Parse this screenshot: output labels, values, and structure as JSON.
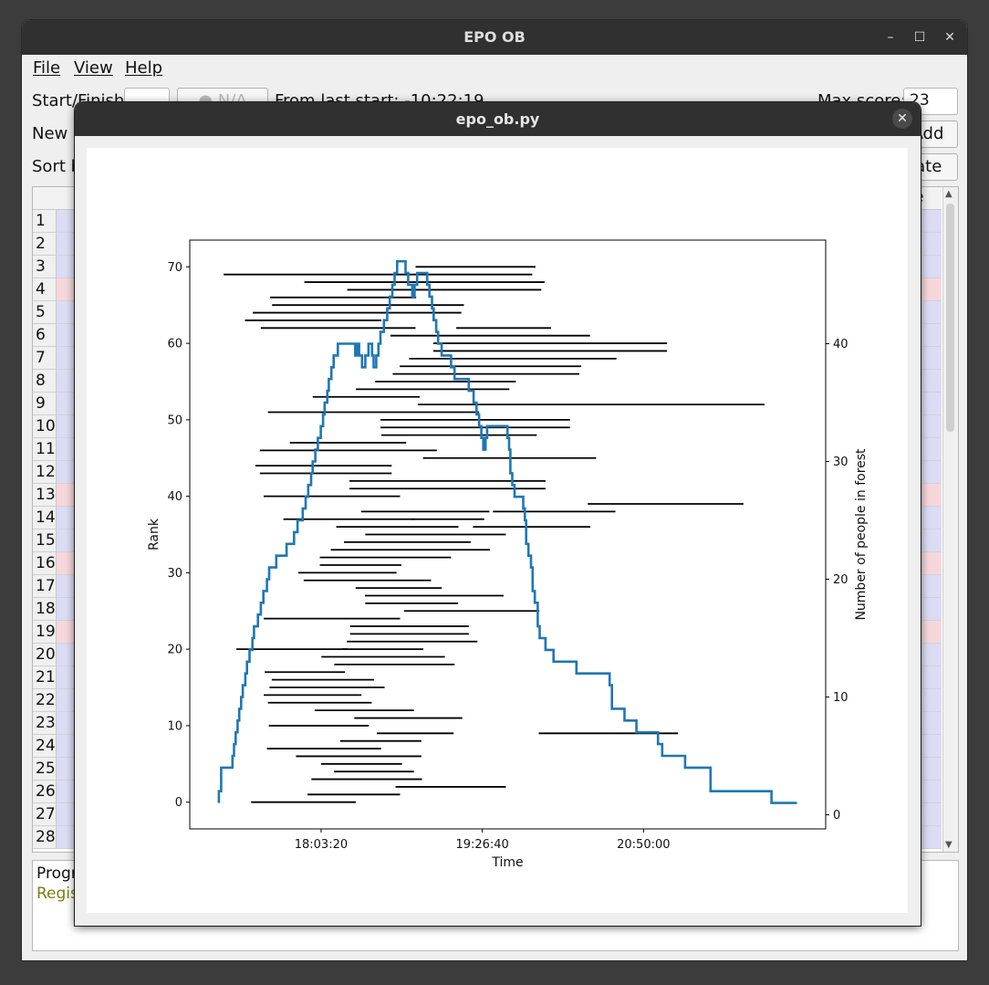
{
  "main_window": {
    "title": "EPO OB",
    "controls": {
      "minimize": "–",
      "maximize": "☐",
      "close": "✕"
    },
    "menu": [
      "File",
      "View",
      "Help"
    ],
    "row1": {
      "start_finish_label": "Start/Finish",
      "na_button": "N/A",
      "from_last_start": "From last start:  -10:22:19",
      "max_score_label": "Max score:",
      "max_score_value": "23"
    },
    "row2": {
      "new_label": "New r",
      "add_button": "Add"
    },
    "row3": {
      "sort_label": "Sort b",
      "update_button": "date"
    },
    "table": {
      "header_fragment": "e",
      "row_numbers": [
        "1",
        "2",
        "3",
        "4",
        "5",
        "6",
        "7",
        "8",
        "9",
        "10",
        "11",
        "12",
        "13",
        "14",
        "15",
        "16",
        "17",
        "18",
        "19",
        "20",
        "21",
        "22",
        "23",
        "24",
        "25",
        "26",
        "27",
        "28"
      ],
      "highlighted_rows": [
        4,
        13,
        16,
        19
      ],
      "colors": {
        "normal": "#dcdcf4",
        "highlighted": "#f6d8dc"
      }
    },
    "log": {
      "line1": "Progr",
      "line2": "Regis",
      "line2_color": "#7d7d10"
    }
  },
  "dialog": {
    "title": "epo_ob.py",
    "close_icon": "✕"
  },
  "chart_data": {
    "type": "line",
    "xlabel": "Time",
    "ylabel_left": "Rank",
    "ylabel_right": "Number of people in forest",
    "x_ticks": [
      "18:03:20",
      "19:26:40",
      "20:50:00"
    ],
    "y_left_ticks": [
      0,
      10,
      20,
      30,
      40,
      50,
      60,
      70
    ],
    "y_right_ticks": [
      0,
      10,
      20,
      30,
      40
    ],
    "y_left_lim": [
      -3.5,
      73.5
    ],
    "y_right_lim": [
      -1.2,
      48.8
    ],
    "x_lim": [
      "16:55:27",
      "22:24:10"
    ],
    "series_color": "#1f77b4",
    "segment_color": "#000000",
    "people_in_forest": [
      [
        "17:10:30",
        1
      ],
      [
        "17:10:30",
        2
      ],
      [
        "17:11:40",
        2
      ],
      [
        "17:11:40",
        4
      ],
      [
        "17:17:30",
        4
      ],
      [
        "17:17:30",
        5
      ],
      [
        "17:18:20",
        5
      ],
      [
        "17:18:20",
        6
      ],
      [
        "17:19:10",
        6
      ],
      [
        "17:19:10",
        7
      ],
      [
        "17:20:10",
        7
      ],
      [
        "17:20:10",
        8
      ],
      [
        "17:21:00",
        8
      ],
      [
        "17:21:00",
        9
      ],
      [
        "17:22:00",
        9
      ],
      [
        "17:22:00",
        10
      ],
      [
        "17:22:50",
        10
      ],
      [
        "17:22:50",
        11
      ],
      [
        "17:24:10",
        11
      ],
      [
        "17:24:10",
        12
      ],
      [
        "17:25:00",
        12
      ],
      [
        "17:25:00",
        13
      ],
      [
        "17:26:20",
        13
      ],
      [
        "17:26:20",
        14
      ],
      [
        "17:27:50",
        14
      ],
      [
        "17:27:50",
        15
      ],
      [
        "17:28:40",
        15
      ],
      [
        "17:28:40",
        16
      ],
      [
        "17:30:40",
        16
      ],
      [
        "17:30:40",
        17
      ],
      [
        "17:32:10",
        17
      ],
      [
        "17:32:10",
        18
      ],
      [
        "17:33:30",
        18
      ],
      [
        "17:33:30",
        19
      ],
      [
        "17:35:20",
        19
      ],
      [
        "17:35:20",
        20
      ],
      [
        "17:36:30",
        20
      ],
      [
        "17:36:30",
        21
      ],
      [
        "17:40:10",
        21
      ],
      [
        "17:40:10",
        22
      ],
      [
        "17:45:30",
        22
      ],
      [
        "17:45:30",
        23
      ],
      [
        "17:49:20",
        23
      ],
      [
        "17:49:20",
        24
      ],
      [
        "17:51:10",
        24
      ],
      [
        "17:51:10",
        25
      ],
      [
        "17:53:50",
        25
      ],
      [
        "17:53:50",
        26
      ],
      [
        "17:55:20",
        26
      ],
      [
        "17:55:20",
        27
      ],
      [
        "17:56:40",
        27
      ],
      [
        "17:56:40",
        28
      ],
      [
        "17:58:10",
        28
      ],
      [
        "17:58:10",
        29
      ],
      [
        "17:59:00",
        29
      ],
      [
        "17:59:00",
        30
      ],
      [
        "18:00:20",
        30
      ],
      [
        "18:00:20",
        31
      ],
      [
        "18:01:40",
        31
      ],
      [
        "18:01:40",
        32
      ],
      [
        "18:03:10",
        32
      ],
      [
        "18:03:10",
        33
      ],
      [
        "18:04:20",
        33
      ],
      [
        "18:04:20",
        34
      ],
      [
        "18:05:10",
        34
      ],
      [
        "18:05:10",
        35
      ],
      [
        "18:06:30",
        35
      ],
      [
        "18:06:30",
        36
      ],
      [
        "18:07:20",
        36
      ],
      [
        "18:07:20",
        37
      ],
      [
        "18:08:40",
        37
      ],
      [
        "18:08:40",
        38
      ],
      [
        "18:09:50",
        38
      ],
      [
        "18:09:50",
        39
      ],
      [
        "18:12:00",
        39
      ],
      [
        "18:12:00",
        40
      ],
      [
        "18:21:00",
        40
      ],
      [
        "18:21:00",
        39
      ],
      [
        "18:22:00",
        39
      ],
      [
        "18:22:00",
        40
      ],
      [
        "18:23:00",
        40
      ],
      [
        "18:23:00",
        39
      ],
      [
        "18:24:30",
        39
      ],
      [
        "18:24:30",
        38
      ],
      [
        "18:26:10",
        38
      ],
      [
        "18:26:10",
        39
      ],
      [
        "18:27:50",
        39
      ],
      [
        "18:27:50",
        40
      ],
      [
        "18:29:40",
        40
      ],
      [
        "18:29:40",
        39
      ],
      [
        "18:30:30",
        39
      ],
      [
        "18:30:30",
        38
      ],
      [
        "18:31:50",
        38
      ],
      [
        "18:31:50",
        39
      ],
      [
        "18:33:00",
        39
      ],
      [
        "18:33:00",
        40
      ],
      [
        "18:34:00",
        40
      ],
      [
        "18:34:00",
        41
      ],
      [
        "18:35:50",
        41
      ],
      [
        "18:35:50",
        42
      ],
      [
        "18:37:30",
        42
      ],
      [
        "18:37:30",
        43
      ],
      [
        "18:38:50",
        43
      ],
      [
        "18:38:50",
        44
      ],
      [
        "18:40:10",
        44
      ],
      [
        "18:40:10",
        45
      ],
      [
        "18:41:20",
        45
      ],
      [
        "18:41:20",
        46
      ],
      [
        "18:42:40",
        46
      ],
      [
        "18:42:40",
        47
      ],
      [
        "18:47:00",
        47
      ],
      [
        "18:47:00",
        46
      ],
      [
        "18:48:20",
        46
      ],
      [
        "18:48:20",
        45
      ],
      [
        "18:50:30",
        45
      ],
      [
        "18:50:30",
        44
      ],
      [
        "18:51:40",
        44
      ],
      [
        "18:51:40",
        45
      ],
      [
        "18:53:00",
        45
      ],
      [
        "18:53:00",
        46
      ],
      [
        "18:58:10",
        46
      ],
      [
        "18:58:10",
        45
      ],
      [
        "18:59:20",
        45
      ],
      [
        "18:59:20",
        44
      ],
      [
        "19:00:40",
        44
      ],
      [
        "19:00:40",
        43
      ],
      [
        "19:01:30",
        43
      ],
      [
        "19:01:30",
        42
      ],
      [
        "19:02:50",
        42
      ],
      [
        "19:02:50",
        41
      ],
      [
        "19:03:50",
        41
      ],
      [
        "19:03:50",
        40
      ],
      [
        "19:05:40",
        40
      ],
      [
        "19:05:40",
        39
      ],
      [
        "19:10:30",
        39
      ],
      [
        "19:10:30",
        38
      ],
      [
        "19:12:20",
        38
      ],
      [
        "19:12:20",
        37
      ],
      [
        "19:19:40",
        37
      ],
      [
        "19:19:40",
        36
      ],
      [
        "19:22:10",
        36
      ],
      [
        "19:22:10",
        35
      ],
      [
        "19:23:40",
        35
      ],
      [
        "19:23:40",
        34
      ],
      [
        "19:25:00",
        34
      ],
      [
        "19:25:00",
        33
      ],
      [
        "19:26:10",
        33
      ],
      [
        "19:26:10",
        32
      ],
      [
        "19:27:10",
        32
      ],
      [
        "19:27:10",
        31
      ],
      [
        "19:28:20",
        31
      ],
      [
        "19:28:20",
        32
      ],
      [
        "19:29:10",
        32
      ],
      [
        "19:29:10",
        33
      ],
      [
        "19:39:40",
        33
      ],
      [
        "19:39:40",
        32
      ],
      [
        "19:40:30",
        32
      ],
      [
        "19:40:30",
        31
      ],
      [
        "19:41:10",
        31
      ],
      [
        "19:41:10",
        29
      ],
      [
        "19:42:10",
        29
      ],
      [
        "19:42:10",
        28
      ],
      [
        "19:43:20",
        28
      ],
      [
        "19:43:20",
        27
      ],
      [
        "19:47:50",
        27
      ],
      [
        "19:47:50",
        26
      ],
      [
        "19:48:40",
        26
      ],
      [
        "19:48:40",
        25
      ],
      [
        "19:49:20",
        25
      ],
      [
        "19:49:20",
        23
      ],
      [
        "19:50:30",
        23
      ],
      [
        "19:50:30",
        22
      ],
      [
        "19:51:50",
        22
      ],
      [
        "19:51:50",
        21
      ],
      [
        "19:52:40",
        21
      ],
      [
        "19:52:40",
        19
      ],
      [
        "19:53:50",
        19
      ],
      [
        "19:53:50",
        18
      ],
      [
        "19:55:20",
        18
      ],
      [
        "19:55:20",
        16
      ],
      [
        "19:56:20",
        16
      ],
      [
        "19:56:20",
        15
      ],
      [
        "19:59:20",
        15
      ],
      [
        "19:59:20",
        14
      ],
      [
        "20:03:30",
        14
      ],
      [
        "20:03:30",
        13
      ],
      [
        "20:15:20",
        13
      ],
      [
        "20:15:20",
        12
      ],
      [
        "20:32:30",
        12
      ],
      [
        "20:32:30",
        11
      ],
      [
        "20:33:40",
        11
      ],
      [
        "20:33:40",
        9
      ],
      [
        "20:40:10",
        9
      ],
      [
        "20:40:10",
        8
      ],
      [
        "20:46:20",
        8
      ],
      [
        "20:46:20",
        7
      ],
      [
        "20:57:30",
        7
      ],
      [
        "20:57:30",
        6
      ],
      [
        "20:59:40",
        6
      ],
      [
        "20:59:40",
        5
      ],
      [
        "21:11:30",
        5
      ],
      [
        "21:11:30",
        4
      ],
      [
        "21:24:40",
        4
      ],
      [
        "21:24:40",
        2
      ],
      [
        "21:56:10",
        2
      ],
      [
        "21:56:10",
        1
      ],
      [
        "22:09:20",
        1
      ]
    ],
    "rank_intervals": [
      [
        0,
        "17:27:10",
        "18:21:20"
      ],
      [
        1,
        "17:56:20",
        "18:44:10"
      ],
      [
        2,
        "18:41:50",
        "19:38:50"
      ],
      [
        3,
        "17:58:20",
        "18:55:30"
      ],
      [
        4,
        "18:10:00",
        "18:51:20"
      ],
      [
        5,
        "18:03:20",
        "18:45:10"
      ],
      [
        6,
        "17:50:20",
        "18:55:10"
      ],
      [
        7,
        "17:35:20",
        "18:34:20"
      ],
      [
        8,
        "18:13:10",
        "18:55:10"
      ],
      [
        9,
        "18:32:10",
        "19:11:50"
      ],
      [
        9,
        "19:55:50",
        "21:07:50"
      ],
      [
        10,
        "17:36:20",
        "18:28:00"
      ],
      [
        11,
        "18:20:30",
        "19:16:20"
      ],
      [
        12,
        "18:00:00",
        "18:51:20"
      ],
      [
        13,
        "17:35:50",
        "18:29:30"
      ],
      [
        14,
        "17:33:40",
        "18:24:10"
      ],
      [
        15,
        "17:36:40",
        "18:36:10"
      ],
      [
        16,
        "17:37:50",
        "18:30:40"
      ],
      [
        17,
        "17:34:10",
        "18:15:40"
      ],
      [
        18,
        "18:10:10",
        "19:12:20"
      ],
      [
        19,
        "18:03:30",
        "19:07:20"
      ],
      [
        20,
        "17:19:30",
        "18:17:00"
      ],
      [
        20,
        "18:14:10",
        "18:56:10"
      ],
      [
        21,
        "18:16:40",
        "19:24:10"
      ],
      [
        22,
        "18:18:20",
        "19:19:40"
      ],
      [
        23,
        "18:18:20",
        "19:19:40"
      ],
      [
        24,
        "17:33:40",
        "18:44:10"
      ],
      [
        25,
        "18:46:10",
        "19:56:10"
      ],
      [
        26,
        "18:26:10",
        "19:14:10"
      ],
      [
        27,
        "18:26:00",
        "19:37:40"
      ],
      [
        28,
        "18:21:10",
        "19:05:40"
      ],
      [
        29,
        "17:54:20",
        "19:00:10"
      ],
      [
        30,
        "17:51:30",
        "18:42:20"
      ],
      [
        31,
        "18:02:40",
        "18:44:50"
      ],
      [
        32,
        "18:02:40",
        "19:10:30"
      ],
      [
        33,
        "18:08:20",
        "19:30:40"
      ],
      [
        34,
        "18:15:10",
        "19:20:40"
      ],
      [
        35,
        "18:26:10",
        "19:38:50"
      ],
      [
        36,
        "18:11:10",
        "19:14:20"
      ],
      [
        36,
        "19:21:50",
        "20:22:30"
      ],
      [
        37,
        "17:43:50",
        "18:51:50"
      ],
      [
        37,
        "18:49:50",
        "19:27:40"
      ],
      [
        38,
        "18:24:00",
        "19:30:20"
      ],
      [
        38,
        "19:32:10",
        "20:35:30"
      ],
      [
        39,
        "20:21:10",
        "21:41:40"
      ],
      [
        40,
        "17:33:40",
        "18:44:10"
      ],
      [
        41,
        "18:18:00",
        "19:59:20"
      ],
      [
        42,
        "18:18:00",
        "19:59:20"
      ],
      [
        43,
        "17:31:40",
        "18:39:50"
      ],
      [
        44,
        "17:29:20",
        "18:39:50"
      ],
      [
        45,
        "18:56:00",
        "20:25:30"
      ],
      [
        46,
        "17:31:40",
        "19:03:10"
      ],
      [
        47,
        "17:47:10",
        "18:47:20"
      ],
      [
        48,
        "18:34:30",
        "19:54:50"
      ],
      [
        49,
        "18:34:00",
        "20:12:00"
      ],
      [
        50,
        "18:34:00",
        "20:12:00"
      ],
      [
        51,
        "17:35:50",
        "19:25:00"
      ],
      [
        52,
        "18:53:20",
        "21:52:30"
      ],
      [
        53,
        "17:59:00",
        "18:54:20"
      ],
      [
        54,
        "18:21:20",
        "19:40:40"
      ],
      [
        55,
        "18:31:10",
        "19:44:00"
      ],
      [
        56,
        "18:40:20",
        "20:16:50"
      ],
      [
        57,
        "18:44:00",
        "20:17:50"
      ],
      [
        58,
        "18:48:50",
        "20:36:00"
      ],
      [
        59,
        "19:01:20",
        "21:02:10"
      ],
      [
        60,
        "19:01:20",
        "21:02:10"
      ],
      [
        61,
        "18:39:10",
        "20:22:20"
      ],
      [
        62,
        "17:32:10",
        "18:52:10"
      ],
      [
        62,
        "19:13:10",
        "20:02:10"
      ],
      [
        63,
        "17:24:00",
        "18:34:30"
      ],
      [
        64,
        "17:28:00",
        "19:15:50"
      ],
      [
        65,
        "17:38:00",
        "19:17:10"
      ],
      [
        66,
        "17:37:00",
        "18:52:30"
      ],
      [
        67,
        "18:16:50",
        "19:57:10"
      ],
      [
        68,
        "17:54:40",
        "19:58:50"
      ],
      [
        69,
        "17:13:00",
        "19:52:30"
      ],
      [
        70,
        "18:52:10",
        "19:54:10"
      ]
    ]
  }
}
